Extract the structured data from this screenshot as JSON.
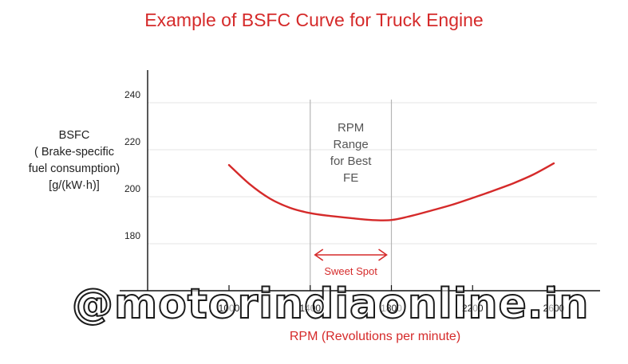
{
  "chart_data": {
    "type": "line",
    "title": "Example of BSFC Curve for Truck Engine",
    "ylabel_lines": [
      "BSFC",
      "( Brake-specific",
      "fuel consumption)",
      "[g/(kW·h)]"
    ],
    "xlabel": "RPM (Revolutions per minute)",
    "x_ticks": [
      1000,
      1400,
      1800,
      2200,
      2600
    ],
    "y_ticks": [
      180,
      200,
      220,
      240
    ],
    "series": [
      {
        "color": "#d52a2a",
        "x": [
          1000,
          1100,
          1200,
          1300,
          1400,
          1500,
          1600,
          1700,
          1800,
          1900,
          2000,
          2100,
          2200,
          2300,
          2400,
          2500,
          2600
        ],
        "y": [
          213.5,
          205.5,
          199.3,
          195.3,
          193.0,
          191.8,
          190.9,
          190.1,
          190.1,
          191.9,
          194.2,
          196.6,
          199.5,
          202.5,
          205.7,
          209.5,
          214.2
        ]
      }
    ],
    "highlight_range": {
      "x_start": 1400,
      "x_end": 1800,
      "label_lines": [
        "RPM",
        "Range",
        "for Best",
        "FE"
      ],
      "arrow_label": "Sweet Spot"
    },
    "grid": true
  },
  "watermark": "@motorindiaonline.in",
  "colors": {
    "accent": "#d52a2a",
    "text": "#222222",
    "grid": "#e6e6e6",
    "axis": "#111111"
  }
}
